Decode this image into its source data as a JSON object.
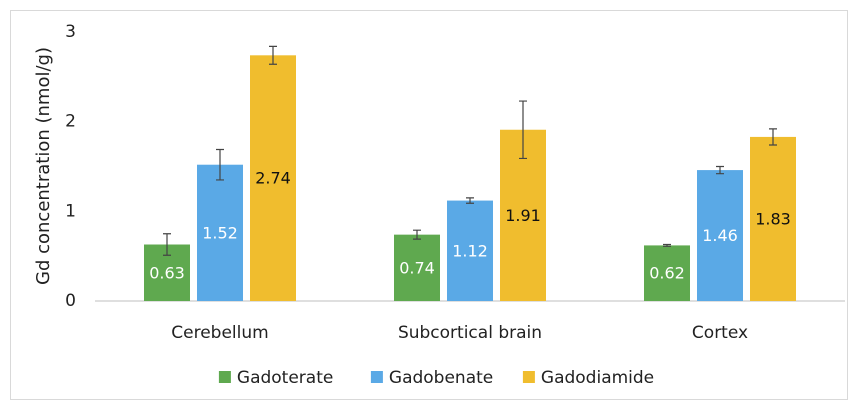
{
  "chart_data": {
    "type": "bar",
    "y_label": "Gd concentration (nmol/g)",
    "categories": [
      "Cerebellum",
      "Subcortical brain",
      "Cortex"
    ],
    "series": [
      {
        "name": "Gadoterate",
        "color": "#5fa94f",
        "label_color": "#ffffff",
        "values": [
          0.63,
          0.74,
          0.62
        ],
        "errors": [
          0.12,
          0.05,
          0.01
        ]
      },
      {
        "name": "Gadobenate",
        "color": "#5aa9e6",
        "label_color": "#ffffff",
        "values": [
          1.52,
          1.12,
          1.46
        ],
        "errors": [
          0.17,
          0.03,
          0.04
        ]
      },
      {
        "name": "Gadodiamide",
        "color": "#f0bd2e",
        "label_color": "#111111",
        "values": [
          2.74,
          1.91,
          1.83
        ],
        "errors": [
          0.1,
          0.32,
          0.09
        ]
      }
    ],
    "ylim": [
      0,
      3
    ],
    "yticks": [
      0,
      1,
      2,
      3
    ],
    "grid": false,
    "legend": "bottom"
  }
}
